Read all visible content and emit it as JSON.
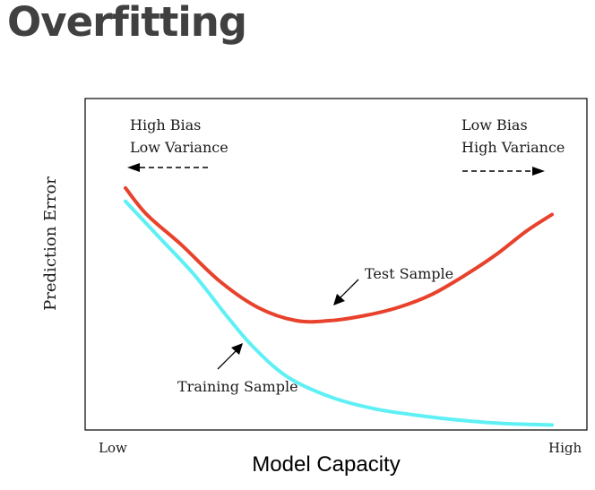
{
  "slide": {
    "title": "Overfitting"
  },
  "chart_data": {
    "type": "line",
    "xlabel": "Model Capacity",
    "ylabel": "Prediction Error",
    "x_tick_labels": [
      "Low",
      "High"
    ],
    "xlim": [
      0,
      1
    ],
    "ylim": [
      0,
      1
    ],
    "grid": false,
    "legend": "none",
    "series": [
      {
        "name": "Test Sample",
        "color": "#e8412c",
        "x": [
          0.0,
          0.05,
          0.13,
          0.22,
          0.31,
          0.4,
          0.48,
          0.56,
          0.64,
          0.72,
          0.8,
          0.87,
          0.94,
          1.0
        ],
        "y": [
          0.73,
          0.65,
          0.56,
          0.45,
          0.37,
          0.33,
          0.33,
          0.345,
          0.37,
          0.41,
          0.47,
          0.53,
          0.6,
          0.65
        ]
      },
      {
        "name": "Training Sample",
        "color": "#5ef0f5",
        "x": [
          0.0,
          0.08,
          0.16,
          0.24,
          0.3,
          0.38,
          0.48,
          0.58,
          0.68,
          0.78,
          0.88,
          1.0
        ],
        "y": [
          0.69,
          0.58,
          0.47,
          0.34,
          0.25,
          0.16,
          0.1,
          0.065,
          0.045,
          0.03,
          0.02,
          0.015
        ]
      }
    ],
    "annotations": {
      "left_top": "High Bias",
      "left_bottom": "Low Variance",
      "right_top": "Low Bias",
      "right_bottom": "High Variance",
      "test_label": "Test Sample",
      "training_label": "Training Sample"
    }
  }
}
